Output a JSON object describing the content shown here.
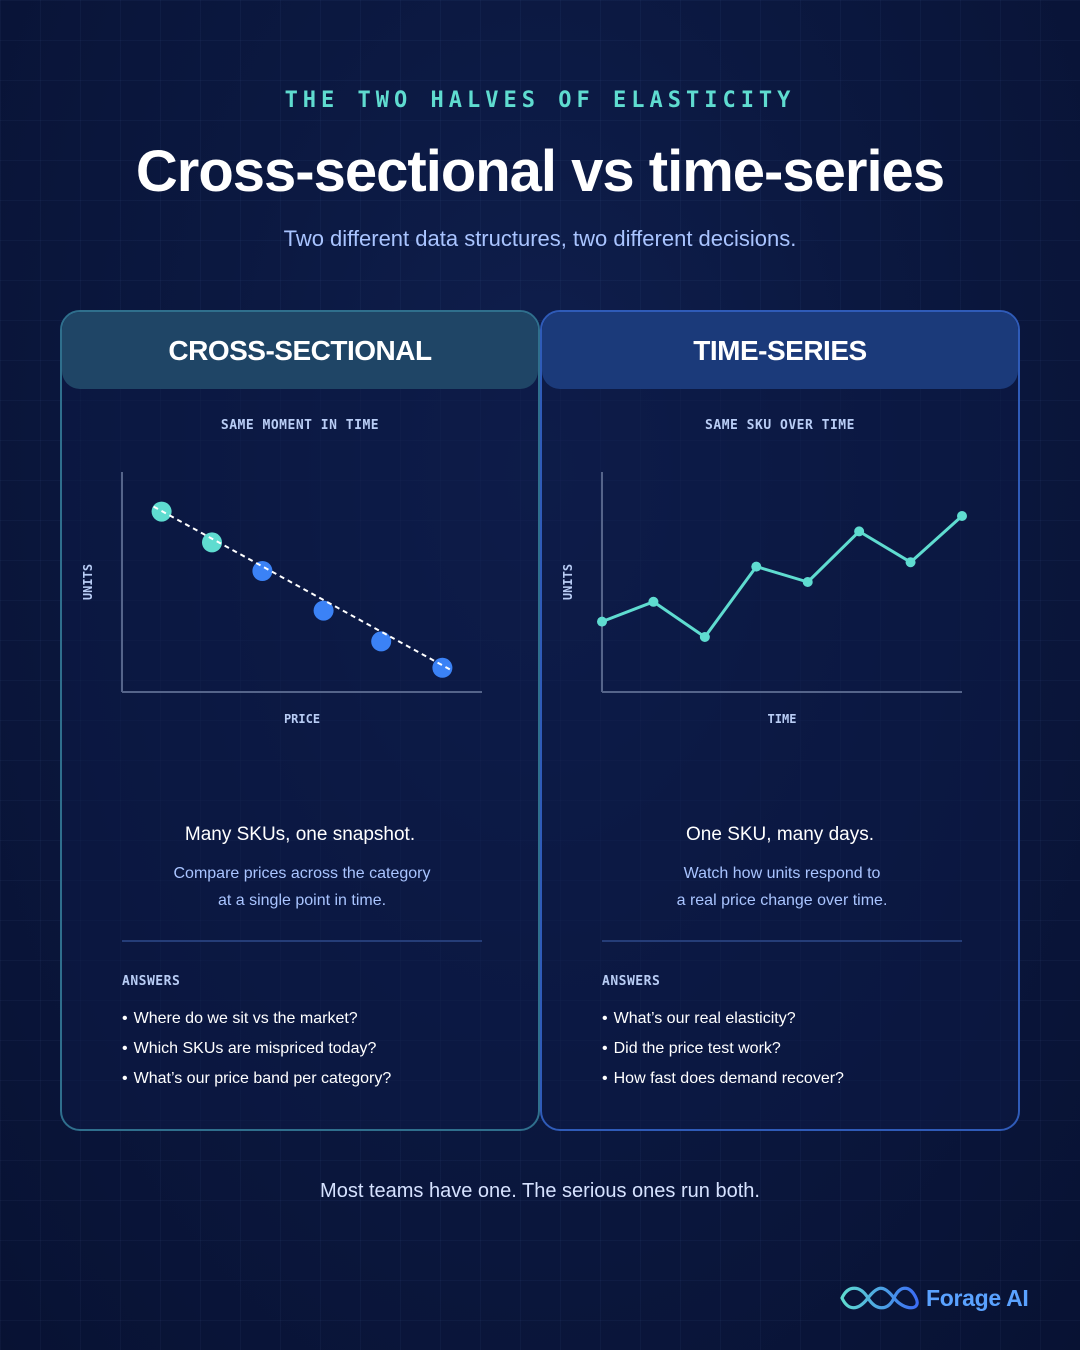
{
  "eyebrow": "THE TWO HALVES OF ELASTICITY",
  "title": "Cross-sectional vs time-series",
  "subtitle": "Two different data structures, two different decisions.",
  "panels": [
    {
      "heading": "CROSS-SECTIONAL",
      "chart_caption": "SAME MOMENT IN TIME",
      "ylabel": "UNITS",
      "xlabel": "PRICE",
      "tagline": "Many SKUs, one snapshot.",
      "desc_line1": "Compare prices across the category",
      "desc_line2": "at a single point in time.",
      "answers_label": "ANSWERS",
      "answers": [
        "Where do we sit vs the market?",
        "Which SKUs are mispriced today?",
        "What’s our price band per category?"
      ]
    },
    {
      "heading": "TIME-SERIES",
      "chart_caption": "SAME SKU OVER TIME",
      "ylabel": "UNITS",
      "xlabel": "TIME",
      "tagline": "One SKU, many days.",
      "desc_line1": "Watch how units respond to",
      "desc_line2": "a real price change over time.",
      "answers_label": "ANSWERS",
      "answers": [
        "What’s our real elasticity?",
        "Did the price test work?",
        "How fast does demand recover?"
      ]
    }
  ],
  "chart_data": [
    {
      "type": "scatter",
      "xlabel": "PRICE",
      "ylabel": "UNITS",
      "trendline": true,
      "points": [
        {
          "x": 0.11,
          "y": 0.82,
          "color": "#5fdcd0"
        },
        {
          "x": 0.25,
          "y": 0.68,
          "color": "#5fdcd0"
        },
        {
          "x": 0.39,
          "y": 0.55,
          "color": "#3b82f6"
        },
        {
          "x": 0.56,
          "y": 0.37,
          "color": "#3b82f6"
        },
        {
          "x": 0.72,
          "y": 0.23,
          "color": "#3b82f6"
        },
        {
          "x": 0.89,
          "y": 0.11,
          "color": "#3b82f6"
        }
      ],
      "xlim": [
        0,
        1
      ],
      "ylim": [
        0,
        1
      ]
    },
    {
      "type": "line",
      "xlabel": "TIME",
      "ylabel": "UNITS",
      "x": [
        0,
        1,
        2,
        3,
        4,
        5,
        6,
        7
      ],
      "values": [
        0.32,
        0.41,
        0.25,
        0.57,
        0.5,
        0.73,
        0.59,
        0.8
      ],
      "xlim": [
        0,
        7
      ],
      "ylim": [
        0,
        1
      ],
      "color": "#5fdcd0"
    }
  ],
  "footer": "Most teams have one. The serious ones run both.",
  "logo": {
    "text": "Forage AI",
    "icon": "infinity-logo-icon",
    "color": "#5aa2ff"
  }
}
